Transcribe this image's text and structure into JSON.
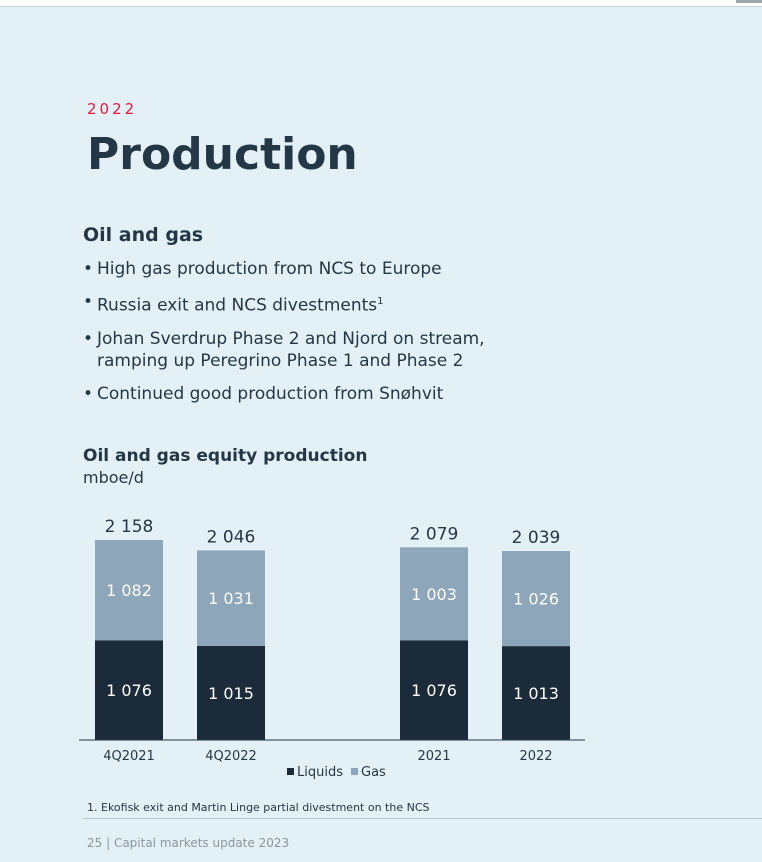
{
  "slide": {
    "year": "2022",
    "title": "Production",
    "subhead": "Oil and gas",
    "bullets": [
      {
        "text": "High gas production from NCS to Europe",
        "sup": ""
      },
      {
        "text": "Russia exit and NCS divestments",
        "sup": "1"
      },
      {
        "text": "Johan Sverdrup Phase 2 and Njord on stream, ramping up Peregrino Phase 1 and Phase 2",
        "sup": ""
      },
      {
        "text": "Continued good production from Snøhvit",
        "sup": ""
      }
    ],
    "chart_title": "Oil and gas equity production",
    "chart_unit": "mboe/d",
    "footnote": "1. Ekofisk exit and Martin Linge partial divestment on the NCS",
    "footer": "25  |  Capital markets update 2023"
  },
  "chart_data": {
    "type": "bar",
    "stacked": true,
    "title": "Oil and gas equity production",
    "ylabel": "mboe/d",
    "categories": [
      "4Q2021",
      "4Q2022",
      "2021",
      "2022"
    ],
    "series": [
      {
        "name": "Liquids",
        "color": "#1c2b39",
        "values": [
          1076,
          1015,
          1076,
          1013
        ],
        "labels": [
          "1 076",
          "1 015",
          "1 076",
          "1 013"
        ]
      },
      {
        "name": "Gas",
        "color": "#8ea6ba",
        "values": [
          1082,
          1031,
          1003,
          1026
        ],
        "labels": [
          "1 082",
          "1 031",
          "1 003",
          "1 026"
        ]
      }
    ],
    "totals": [
      2158,
      2046,
      2079,
      2039
    ],
    "total_labels": [
      "2 158",
      "2 046",
      "2 079",
      "2 039"
    ],
    "legend": "bottom",
    "grid": false
  }
}
